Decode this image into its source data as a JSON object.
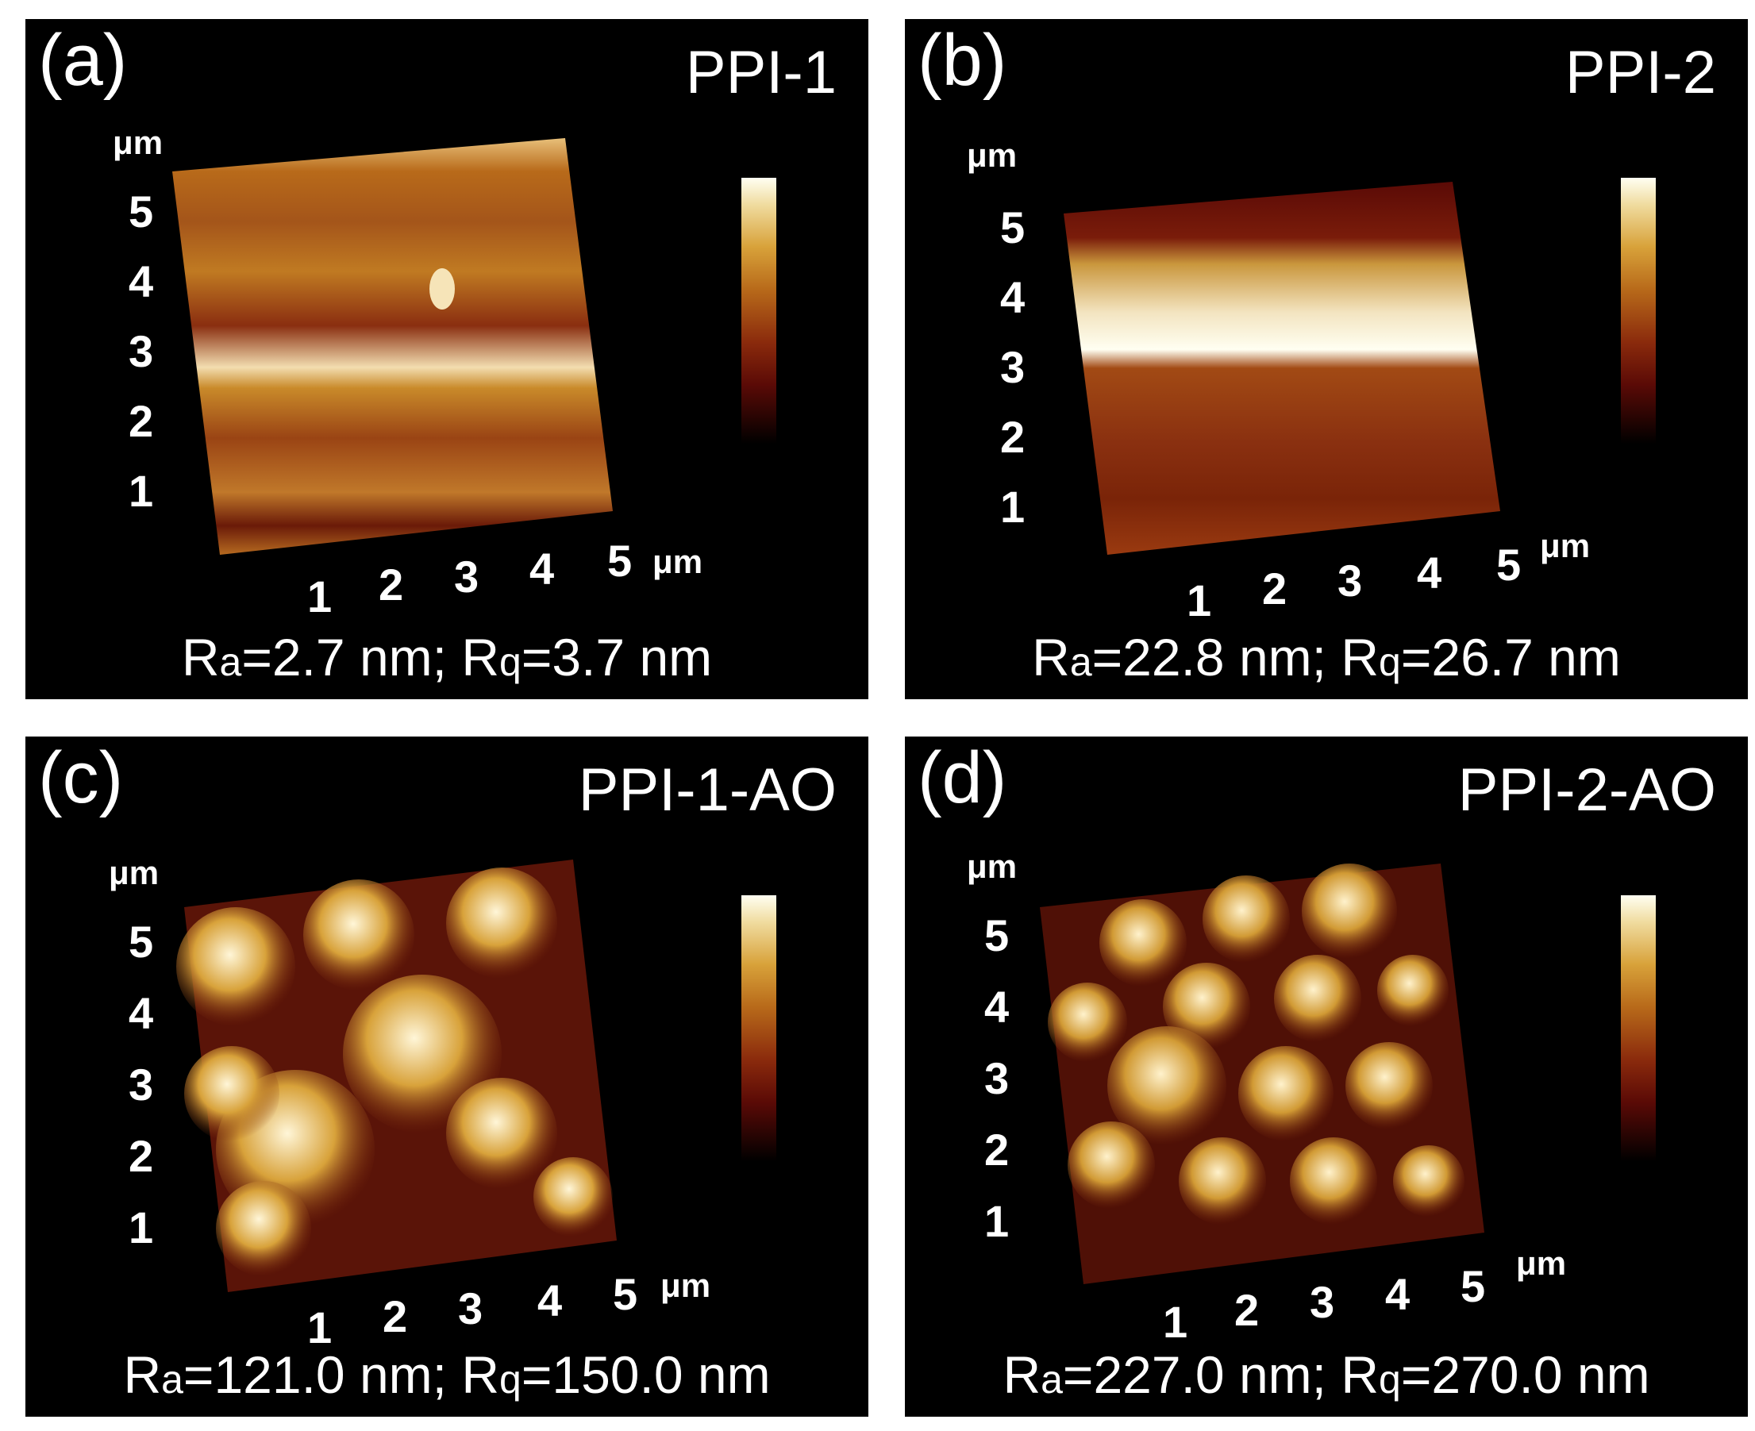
{
  "panels": [
    {
      "label": "(a)",
      "sample": "PPI-1",
      "Ra": "2.7 nm",
      "Rq": "3.7 nm"
    },
    {
      "label": "(b)",
      "sample": "PPI-2",
      "Ra": "22.8 nm",
      "Rq": "26.7 nm"
    },
    {
      "label": "(c)",
      "sample": "PPI-1-AO",
      "Ra": "121.0 nm",
      "Rq": "150.0 nm"
    },
    {
      "label": "(d)",
      "sample": "PPI-2-AO",
      "Ra": "227.0 nm",
      "Rq": "270.0 nm"
    }
  ],
  "axis": {
    "unit": "μm",
    "y_ticks": [
      "1",
      "2",
      "3",
      "4",
      "5"
    ],
    "x_ticks": [
      "1",
      "2",
      "3",
      "4",
      "5"
    ]
  },
  "roughness_labels": {
    "ra": "R",
    "ra_sub": "a",
    "rq": "R",
    "rq_sub": "q"
  },
  "colors": {
    "background": "#000000",
    "low": "#3a0503",
    "mid": "#b86a1a",
    "high": "#fffff2"
  }
}
